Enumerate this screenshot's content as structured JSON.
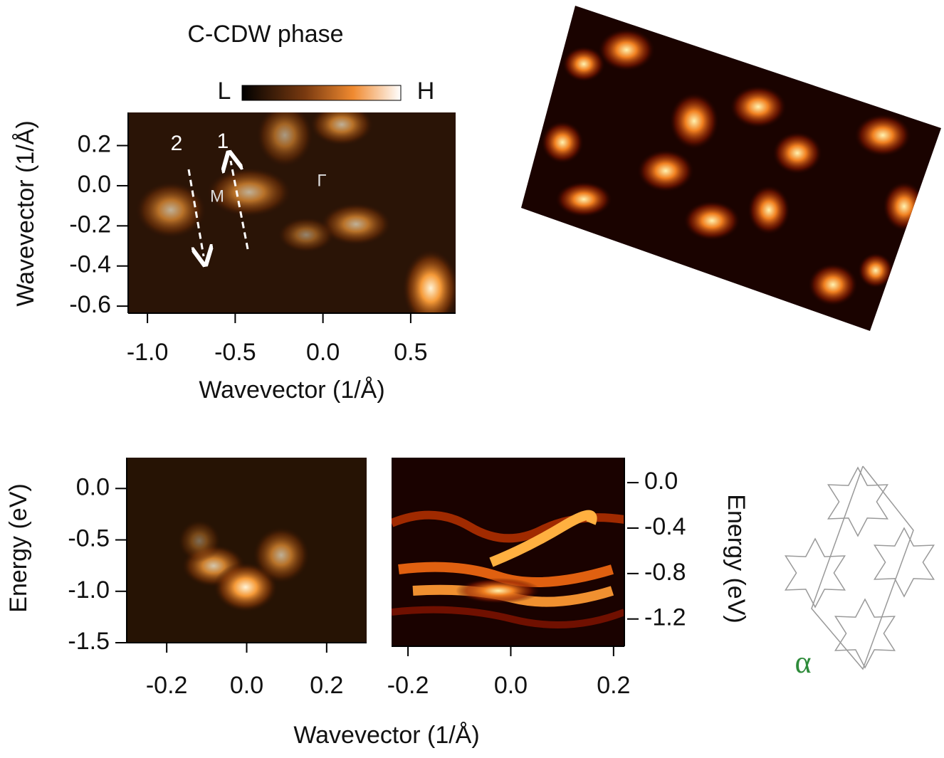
{
  "chart_data": [
    {
      "type": "heatmap",
      "title": "C-CDW phase",
      "colorbar_labels": [
        "L",
        "H"
      ],
      "x_label": "Wavevector (1/Å)",
      "y_label": "Wavevector (1/Å)",
      "xlim": [
        -1.11,
        0.756
      ],
      "ylim": [
        -0.635,
        0.365
      ],
      "xticks": [
        {
          "value": -1,
          "label": "-1.0"
        },
        -0.5,
        {
          "value": 0,
          "label": "0.0"
        },
        0.5
      ],
      "yticks": [
        0.2,
        {
          "value": 0,
          "label": "0.0"
        },
        -0.2,
        -0.4,
        -0.6
      ],
      "annotations": [
        "2",
        "1",
        "M",
        "Γ"
      ]
    },
    {
      "type": "heatmap",
      "y_label": "Energy (eV)",
      "xlim": [
        -0.3,
        0.3
      ],
      "ylim": [
        -1.5,
        0.3
      ],
      "xticks": [
        -0.2,
        {
          "value": 0,
          "label": "0.0"
        },
        0.2
      ],
      "yticks": [
        {
          "value": 0,
          "label": "0.0"
        },
        -0.5,
        {
          "value": -1,
          "label": "-1.0"
        },
        -1.5
      ]
    },
    {
      "type": "heatmap",
      "y_label": "Energy (eV)",
      "xlim": [
        -0.232,
        0.221
      ],
      "ylim": [
        -1.44,
        0.22
      ],
      "xticks": [
        -0.2,
        {
          "value": 0,
          "label": "0.0"
        },
        0.2
      ],
      "yticks": [
        {
          "value": 0,
          "label": "0.0"
        },
        -0.4,
        -0.8,
        -1.2
      ]
    }
  ],
  "shared_x_label": "Wavevector (1/Å)",
  "lattice_label": "α"
}
